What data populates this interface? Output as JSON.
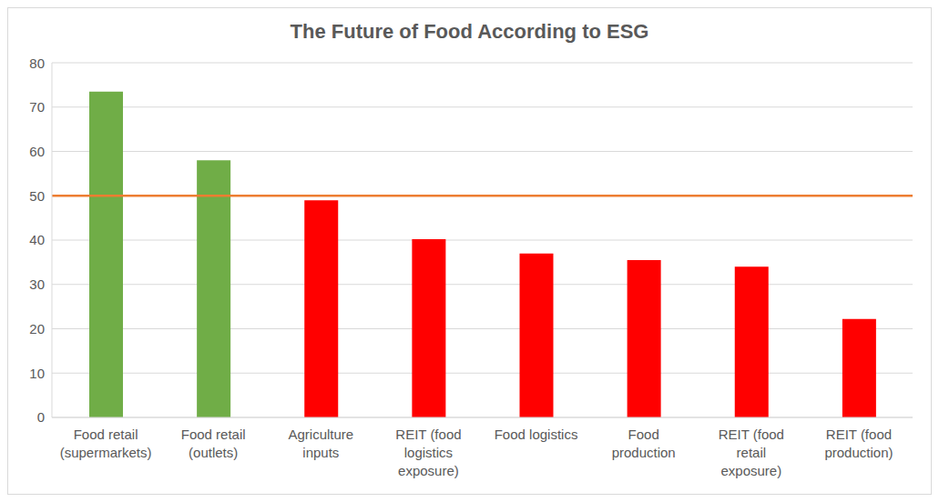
{
  "chart_data": {
    "type": "bar",
    "title": "The Future of Food According to ESG",
    "categories": [
      "Food retail (supermarkets)",
      "Food retail (outlets)",
      "Agriculture inputs",
      "REIT (food logistics exposure)",
      "Food logistics",
      "Food production",
      "REIT (food retail exposure)",
      "REIT (food production)"
    ],
    "values": [
      73.5,
      58,
      49,
      40.2,
      37,
      35.5,
      34,
      22.2
    ],
    "colors": [
      "#70ad47",
      "#70ad47",
      "#ff0000",
      "#ff0000",
      "#ff0000",
      "#ff0000",
      "#ff0000",
      "#ff0000"
    ],
    "threshold": 50,
    "ylim": [
      0,
      80
    ],
    "yticks": [
      0,
      10,
      20,
      30,
      40,
      50,
      60,
      70,
      80
    ],
    "grid": true
  }
}
